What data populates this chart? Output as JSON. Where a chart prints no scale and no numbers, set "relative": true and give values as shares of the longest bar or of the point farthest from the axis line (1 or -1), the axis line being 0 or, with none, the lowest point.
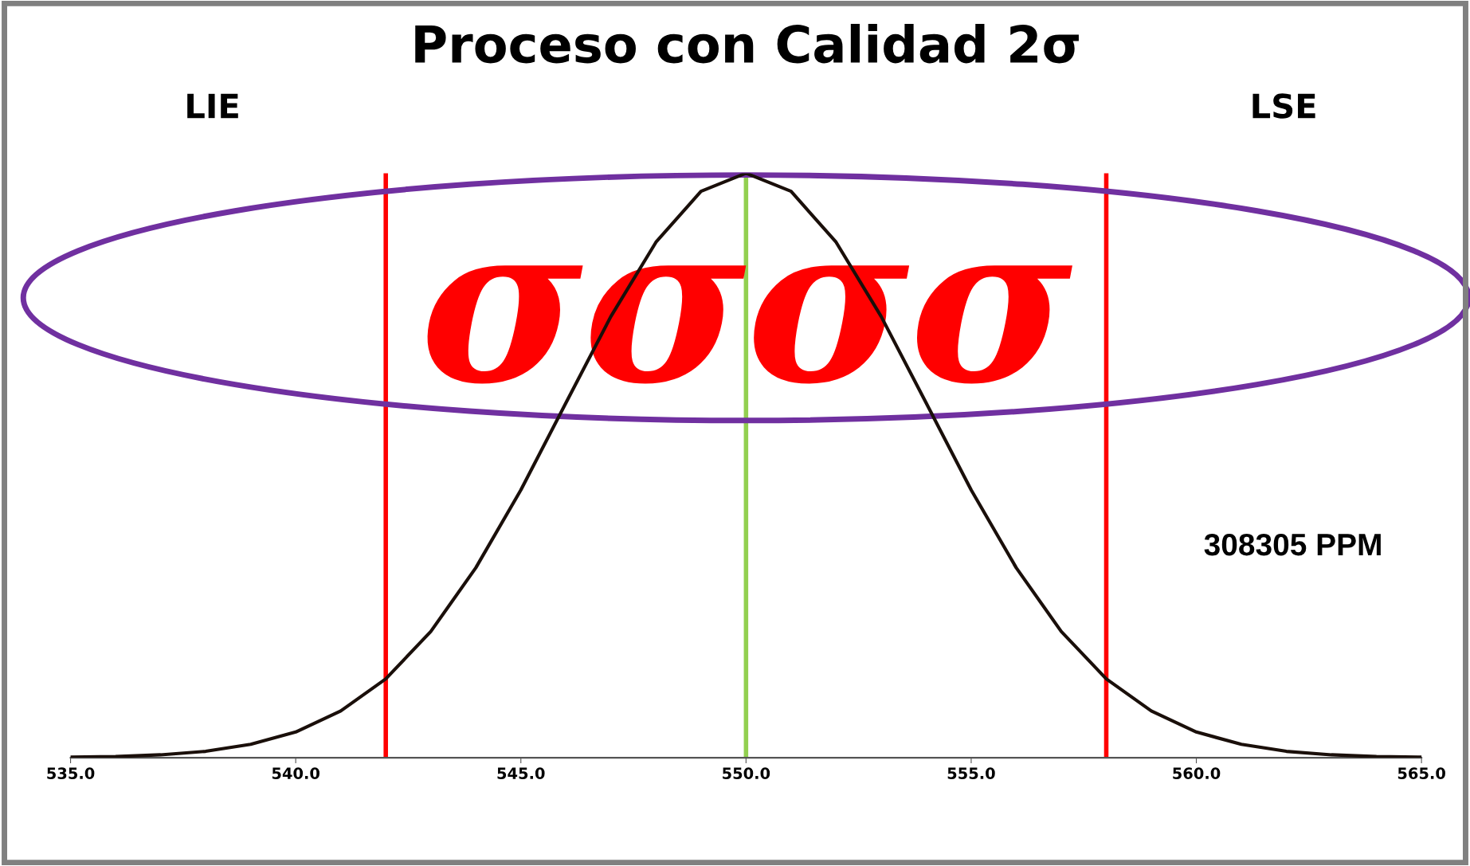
{
  "chart_data": {
    "type": "line",
    "title": "Proceso con Calidad 2σ",
    "relative": true,
    "x": [
      535,
      536,
      537,
      538,
      539,
      540,
      541,
      542,
      543,
      544,
      545,
      546,
      547,
      548,
      549,
      550,
      551,
      552,
      553,
      554,
      555,
      556,
      557,
      558,
      559,
      560,
      561,
      562,
      563,
      564,
      565
    ],
    "series": [
      {
        "color": "#1a0f0a",
        "values": [
          0.001,
          0.002,
          0.005,
          0.011,
          0.023,
          0.044,
          0.08,
          0.135,
          0.216,
          0.325,
          0.458,
          0.607,
          0.755,
          0.882,
          0.969,
          1,
          0.969,
          0.882,
          0.755,
          0.607,
          0.458,
          0.325,
          0.216,
          0.135,
          0.08,
          0.044,
          0.023,
          0.011,
          0.005,
          0.002,
          0.001
        ]
      }
    ],
    "xlim": [
      535,
      565
    ],
    "xticks": [
      {
        "value": 535,
        "label": "535.0"
      },
      {
        "value": 540,
        "label": "540.0"
      },
      {
        "value": 545,
        "label": "545.0"
      },
      {
        "value": 550,
        "label": "550.0"
      },
      {
        "value": 555,
        "label": "555.0"
      },
      {
        "value": 560,
        "label": "560.0"
      },
      {
        "value": 565,
        "label": "565.0"
      }
    ],
    "ref_lines": [
      {
        "axis": "x",
        "value": 542,
        "color": "#ff0000"
      },
      {
        "axis": "x",
        "value": 550,
        "color": "#92d050"
      },
      {
        "axis": "x",
        "value": 558,
        "color": "#ff0000"
      }
    ],
    "annotations": [
      "σσσσ",
      "308305 PPM",
      "LIE",
      "LSE"
    ],
    "grid": false,
    "legend": false,
    "marker": "none",
    "line_style": "solid"
  }
}
